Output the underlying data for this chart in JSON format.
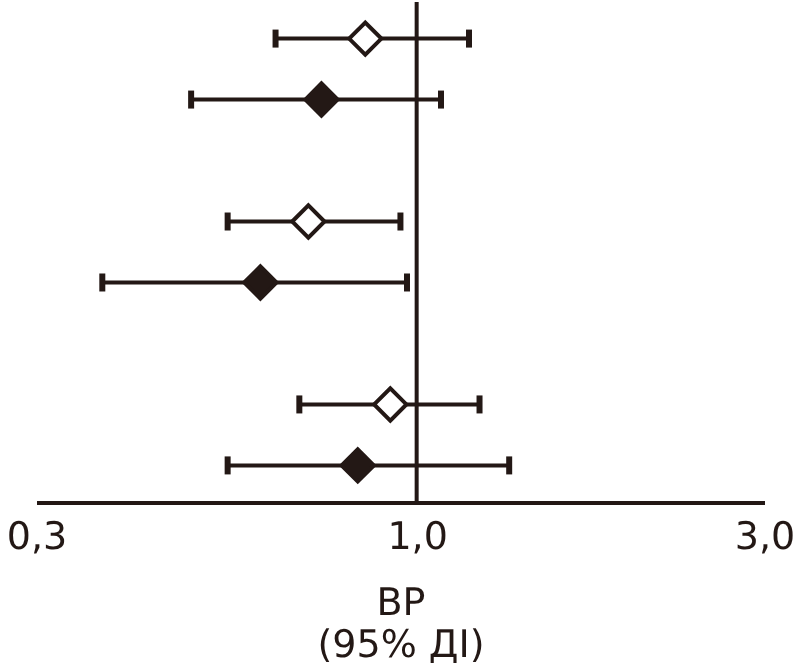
{
  "chart_data": {
    "type": "scatter",
    "orientation": "horizontal",
    "marker": "diamond",
    "log": "x",
    "xlabel": "ВР\n(95% ДІ)",
    "categories": [
      null,
      null,
      null,
      null,
      null,
      null,
      null,
      null
    ],
    "xlim": [
      0.3,
      3.0
    ],
    "xticks": [
      {
        "value": 0.3,
        "label": "0,3"
      },
      {
        "value": 1.0,
        "label": "1,0"
      },
      {
        "value": 3.0,
        "label": "3,0"
      }
    ],
    "ref_lines": [
      {
        "axis": "x",
        "value": 1.0,
        "color": "#231815"
      }
    ],
    "series": [
      {
        "color": "#ffffff",
        "values": [
          0.85,
          null,
          null,
          0.71,
          null,
          null,
          0.92,
          null
        ],
        "errors": [
          [
            0.64,
            1.18
          ],
          null,
          null,
          [
            0.55,
            0.95
          ],
          null,
          null,
          [
            0.69,
            1.22
          ],
          null
        ]
      },
      {
        "color": "#231815",
        "values": [
          null,
          0.74,
          null,
          null,
          0.61,
          null,
          null,
          0.83
        ],
        "errors": [
          null,
          [
            0.49,
            1.08
          ],
          null,
          null,
          [
            0.37,
            0.97
          ],
          null,
          null,
          [
            0.55,
            1.34
          ]
        ]
      }
    ]
  }
}
